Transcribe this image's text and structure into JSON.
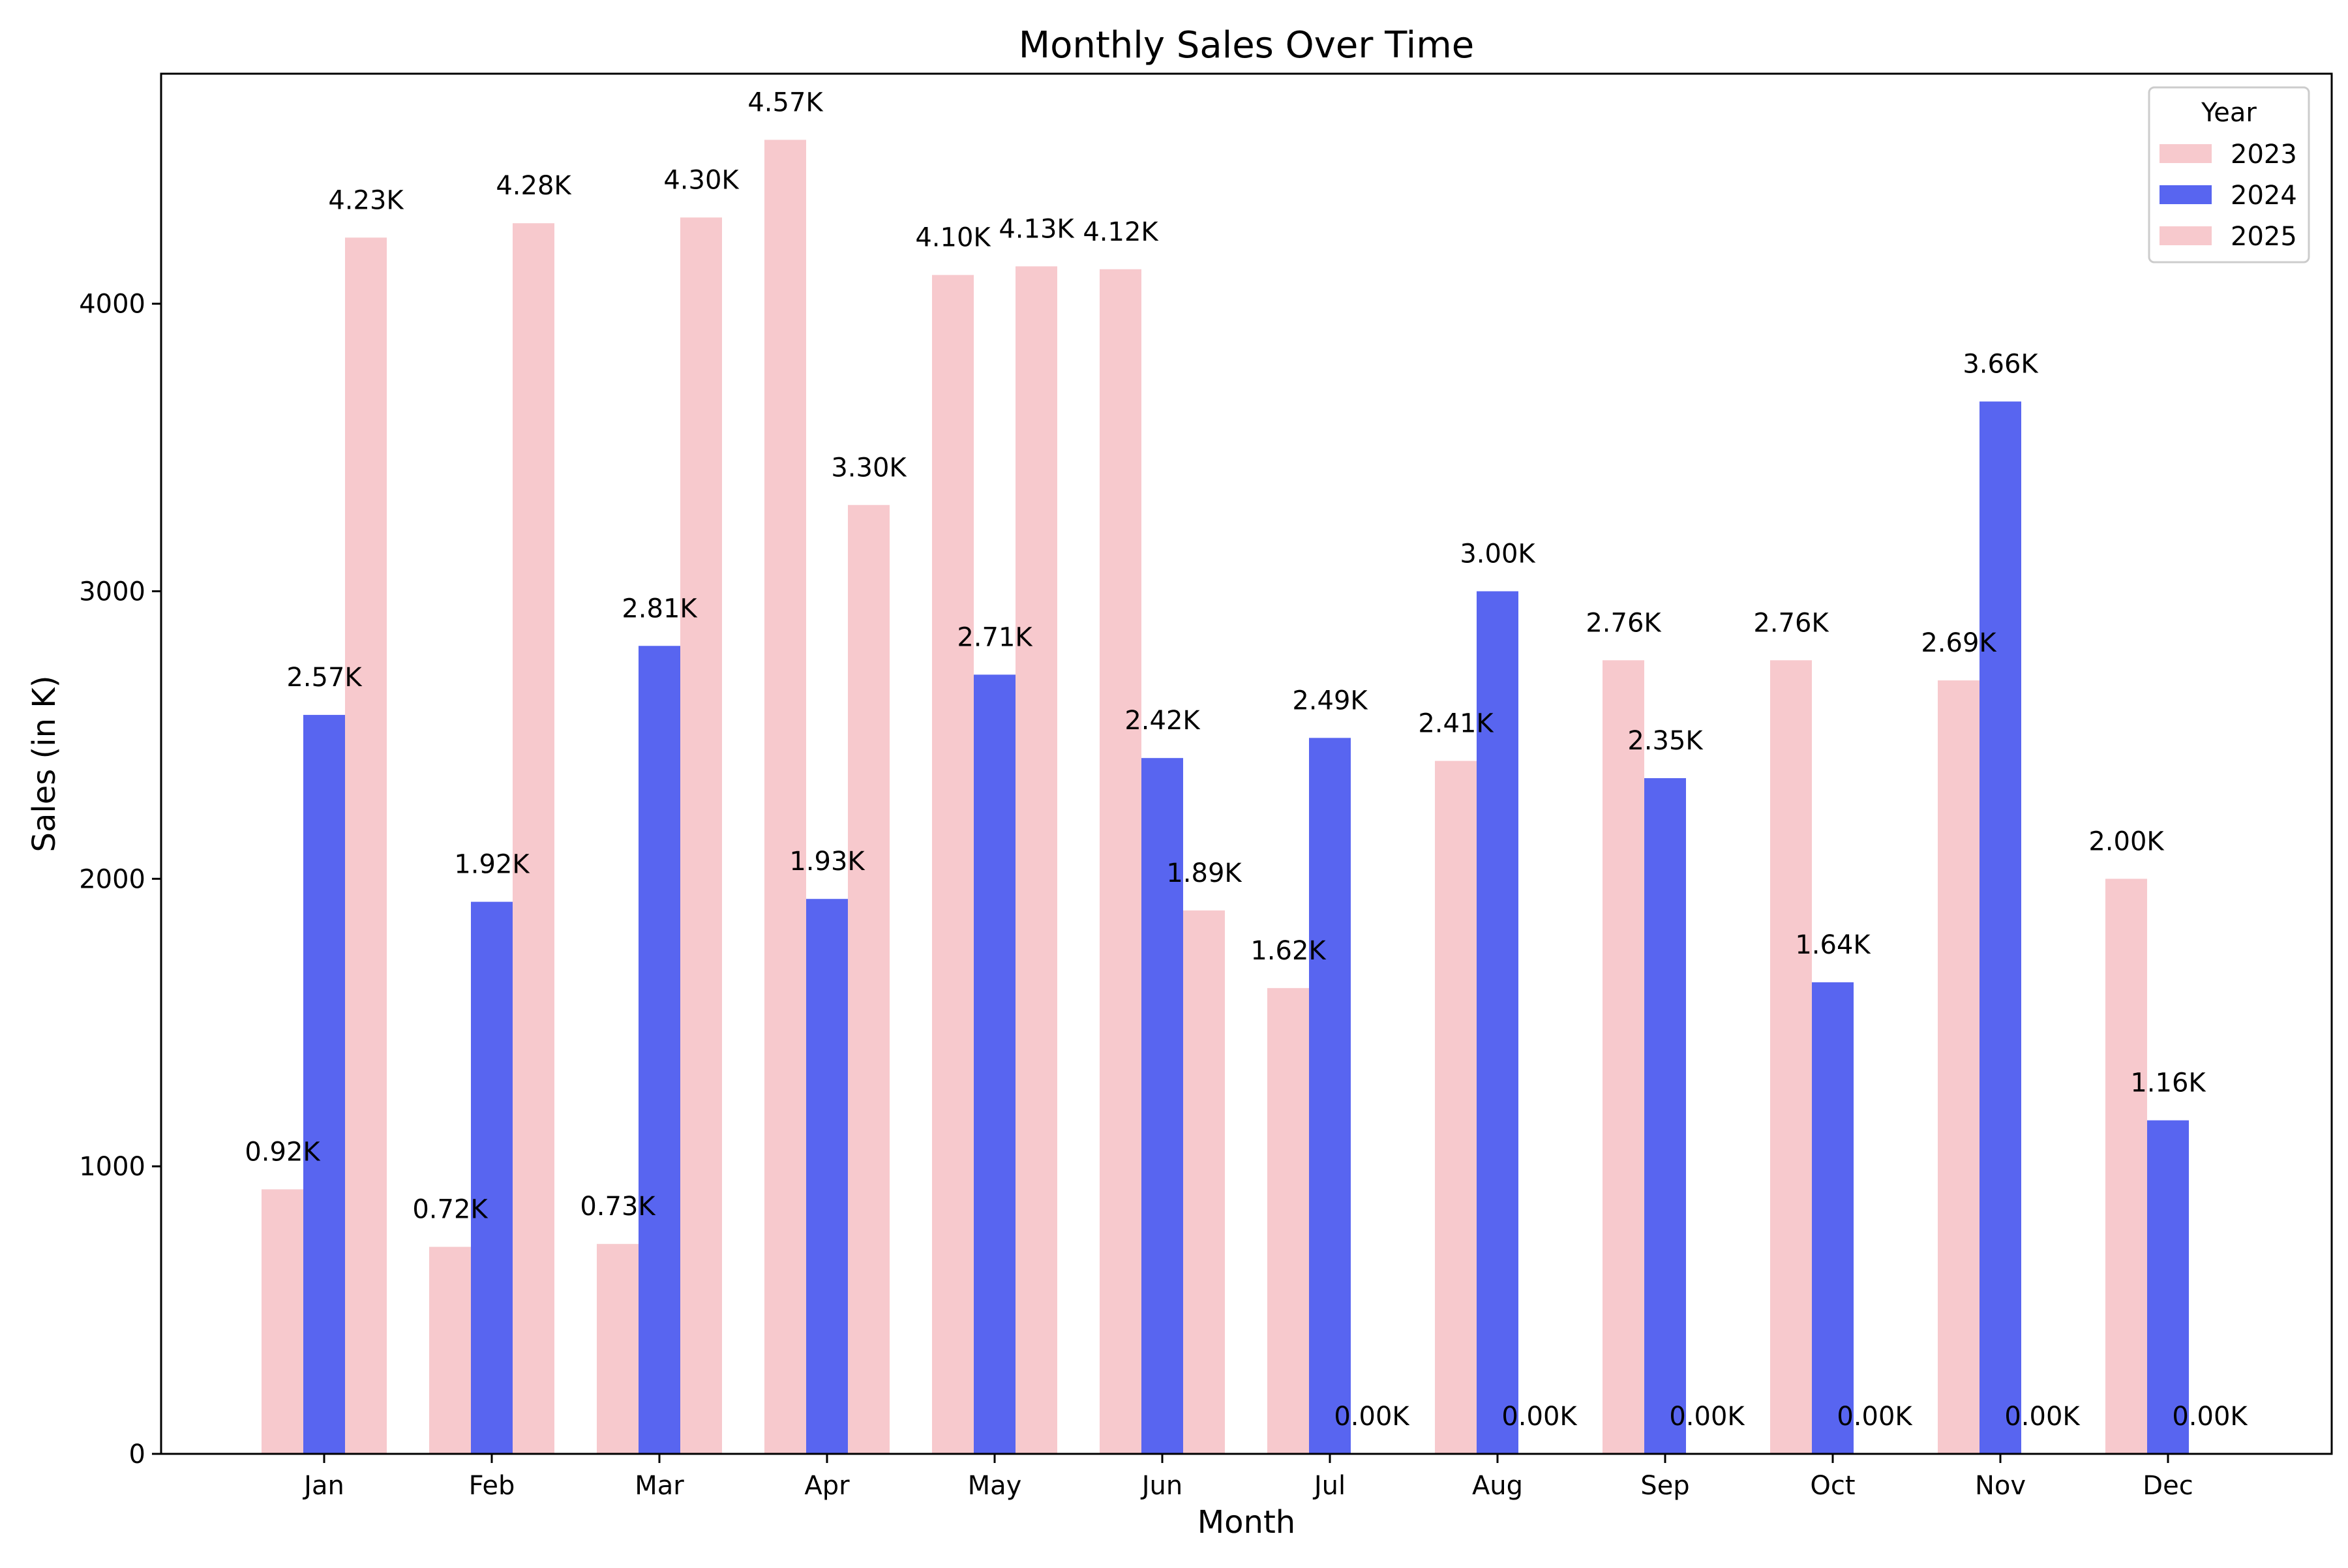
{
  "chart_data": {
    "type": "bar",
    "title": "Monthly Sales Over Time",
    "xlabel": "Month",
    "ylabel": "Sales (in K)",
    "categories": [
      "Jan",
      "Feb",
      "Mar",
      "Apr",
      "May",
      "Jun",
      "Jul",
      "Aug",
      "Sep",
      "Oct",
      "Nov",
      "Dec"
    ],
    "ylim": [
      0,
      4800
    ],
    "yticks": [
      0,
      1000,
      2000,
      3000,
      4000
    ],
    "grid": false,
    "legend": {
      "title": "Year",
      "placement": "top-right"
    },
    "series": [
      {
        "name": "2023",
        "color": "#f7c9cd",
        "values": [
          920,
          720,
          730,
          4570,
          4100,
          4120,
          1620,
          2410,
          2760,
          2760,
          2690,
          2000
        ],
        "labels": [
          "0.92K",
          "0.72K",
          "0.73K",
          "4.57K",
          "4.10K",
          "4.12K",
          "1.62K",
          "2.41K",
          "2.76K",
          "2.76K",
          "2.69K",
          "2.00K"
        ]
      },
      {
        "name": "2024",
        "color": "#5865f0",
        "values": [
          2570,
          1920,
          2810,
          1930,
          2710,
          2420,
          2490,
          3000,
          2350,
          1640,
          3660,
          1160
        ],
        "labels": [
          "2.57K",
          "1.92K",
          "2.81K",
          "1.93K",
          "2.71K",
          "2.42K",
          "2.49K",
          "3.00K",
          "2.35K",
          "1.64K",
          "3.66K",
          "1.16K"
        ]
      },
      {
        "name": "2025",
        "color": "#f7c9cd",
        "values": [
          4230,
          4280,
          4300,
          3300,
          4130,
          1890,
          0,
          0,
          0,
          0,
          0,
          0
        ],
        "labels": [
          "4.23K",
          "4.28K",
          "4.30K",
          "3.30K",
          "4.13K",
          "1.89K",
          "0.00K",
          "0.00K",
          "0.00K",
          "0.00K",
          "0.00K",
          "0.00K"
        ]
      }
    ]
  }
}
